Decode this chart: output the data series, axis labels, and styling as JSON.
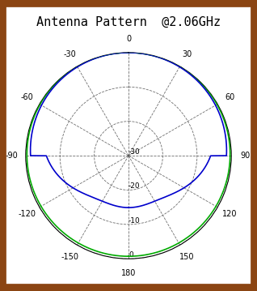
{
  "title": "Antenna Pattern  @2.06GHz",
  "title_fontsize": 11,
  "background_color": "#ffffff",
  "border_color": "#8B4513",
  "border_linewidth": 7,
  "grid_color": "#555555",
  "grid_linestyle": "--",
  "grid_linewidth": 0.6,
  "radial_ticks_db": [
    0,
    -10,
    -20,
    -30
  ],
  "radial_tick_labels": [
    "0",
    "-10",
    "-20",
    "-30"
  ],
  "angle_ticks_deg": [
    0,
    30,
    60,
    90,
    120,
    150,
    180,
    210,
    240,
    270,
    300,
    330
  ],
  "angle_tick_labels": [
    "0",
    "30",
    "60",
    "90",
    "120",
    "150",
    "180",
    "-150",
    "-120",
    "-90",
    "-60",
    "-30"
  ],
  "r_max_db": 0,
  "r_min_db": -30,
  "blue_color": "#0000cc",
  "green_color": "#00aa00",
  "line_linewidth": 1.2
}
